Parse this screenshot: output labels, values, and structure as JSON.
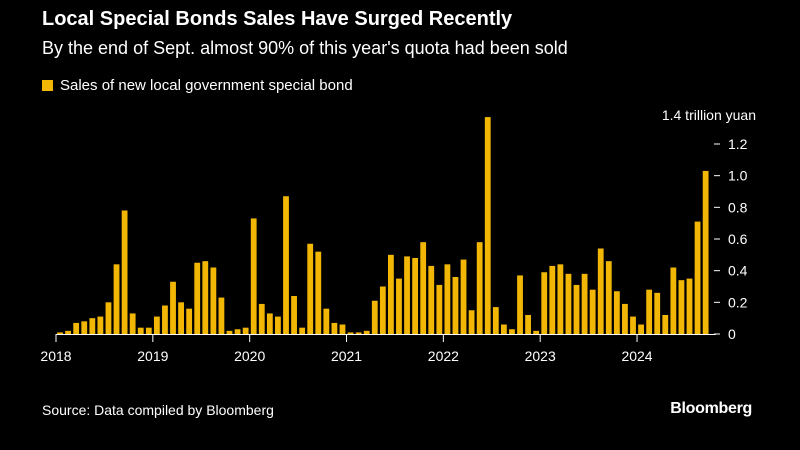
{
  "chart_data": {
    "type": "bar",
    "title": "Local Special Bonds Sales Have Surged Recently",
    "subtitle": "By the end of Sept. almost 90% of this year's quota had been sold",
    "legend": "Sales of new local government special bond",
    "unit_label": "1.4 trillion yuan",
    "bar_color": "#f2b705",
    "ylim": [
      0,
      1.4
    ],
    "y_ticks": [
      {
        "value": 0,
        "label": "0"
      },
      {
        "value": 0.2,
        "label": "0.2"
      },
      {
        "value": 0.4,
        "label": "0.4"
      },
      {
        "value": 0.6,
        "label": "0.6"
      },
      {
        "value": 0.8,
        "label": "0.8"
      },
      {
        "value": 1.0,
        "label": "1.0"
      },
      {
        "value": 1.2,
        "label": "1.2"
      }
    ],
    "x_ticks": [
      {
        "index": 0,
        "label": "2018"
      },
      {
        "index": 12,
        "label": "2019"
      },
      {
        "index": 24,
        "label": "2020"
      },
      {
        "index": 36,
        "label": "2021"
      },
      {
        "index": 48,
        "label": "2022"
      },
      {
        "index": 60,
        "label": "2023"
      },
      {
        "index": 72,
        "label": "2024"
      }
    ],
    "start": "2018-01",
    "values": [
      0.01,
      0.02,
      0.07,
      0.08,
      0.1,
      0.11,
      0.2,
      0.44,
      0.78,
      0.13,
      0.04,
      0.04,
      0.11,
      0.18,
      0.33,
      0.2,
      0.16,
      0.45,
      0.46,
      0.42,
      0.23,
      0.02,
      0.03,
      0.04,
      0.73,
      0.19,
      0.13,
      0.11,
      0.87,
      0.24,
      0.04,
      0.57,
      0.52,
      0.16,
      0.07,
      0.06,
      0.01,
      0.01,
      0.02,
      0.21,
      0.3,
      0.5,
      0.35,
      0.49,
      0.48,
      0.58,
      0.43,
      0.31,
      0.44,
      0.36,
      0.47,
      0.15,
      0.58,
      1.37,
      0.17,
      0.06,
      0.03,
      0.37,
      0.12,
      0.02,
      0.39,
      0.43,
      0.44,
      0.38,
      0.31,
      0.38,
      0.28,
      0.54,
      0.46,
      0.27,
      0.19,
      0.11,
      0.06,
      0.28,
      0.26,
      0.12,
      0.42,
      0.34,
      0.35,
      0.71,
      1.03
    ]
  },
  "source": "Source: Data compiled by Bloomberg",
  "brand": "Bloomberg"
}
